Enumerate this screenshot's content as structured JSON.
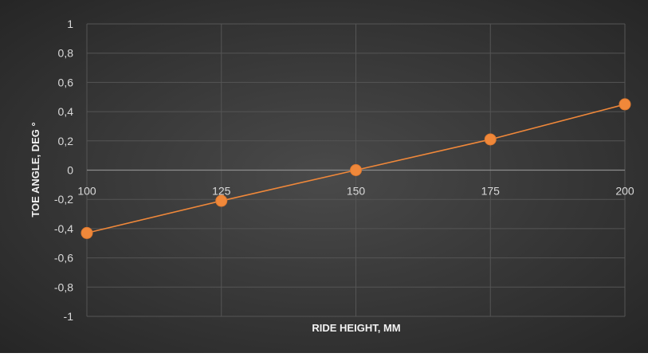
{
  "chart_data": {
    "type": "scatter",
    "title": "",
    "xlabel": "RIDE HEIGHT, MM",
    "ylabel": "TOE ANGLE, DEG °",
    "xlim": [
      100,
      200
    ],
    "ylim": [
      -1,
      1
    ],
    "x_ticks": [
      "100",
      "125",
      "150",
      "175",
      "200"
    ],
    "y_ticks": [
      "1",
      "0,8",
      "0,6",
      "0,4",
      "0,2",
      "0",
      "-0,2",
      "-0,4",
      "-0,6",
      "-0,8",
      "-1"
    ],
    "grid": true,
    "legend": "none",
    "series": [
      {
        "x": [
          100,
          125,
          150,
          175,
          200
        ],
        "y": [
          -0.43,
          -0.21,
          0.0,
          0.21,
          0.45
        ],
        "color": "#f0883a",
        "marker": "circle",
        "line": "straight"
      }
    ],
    "background": "#3a3a3a",
    "gridline_color": "#555555"
  }
}
